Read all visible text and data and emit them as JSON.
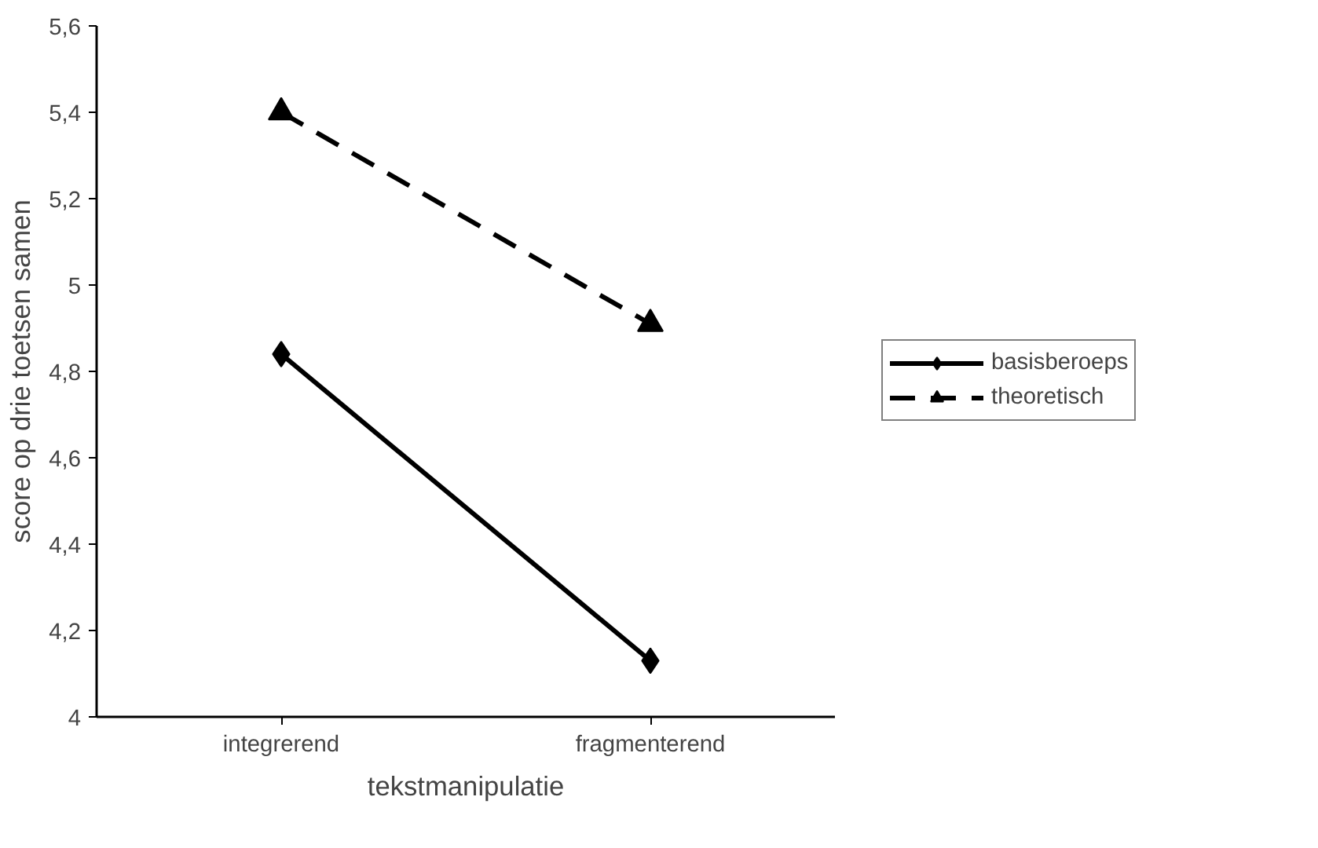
{
  "chart_data": {
    "type": "line",
    "xlabel": "tekstmanipulatie",
    "ylabel": "score op drie toetsen samen",
    "categories": [
      "integrerend",
      "fragmenterend"
    ],
    "series": [
      {
        "name": "basisberoeps",
        "color": "#000000",
        "values": [
          4.84,
          4.13
        ],
        "marker": "diamond",
        "line_style": "solid"
      },
      {
        "name": "theoretisch",
        "color": "#000000",
        "values": [
          5.4,
          4.91
        ],
        "marker": "triangle",
        "line_style": "dashed"
      }
    ],
    "ylim": [
      4,
      5.6
    ],
    "yticks": [
      4,
      {
        "value": 4.2,
        "label": "4,2"
      },
      {
        "value": 4.4,
        "label": "4,4"
      },
      {
        "value": 4.6,
        "label": "4,6"
      },
      {
        "value": 4.8,
        "label": "4,8"
      },
      5,
      {
        "value": 5.2,
        "label": "5,2"
      },
      {
        "value": 5.4,
        "label": "5,4"
      },
      {
        "value": 5.6,
        "label": "5,6"
      }
    ],
    "grid": false,
    "legend": "right"
  }
}
